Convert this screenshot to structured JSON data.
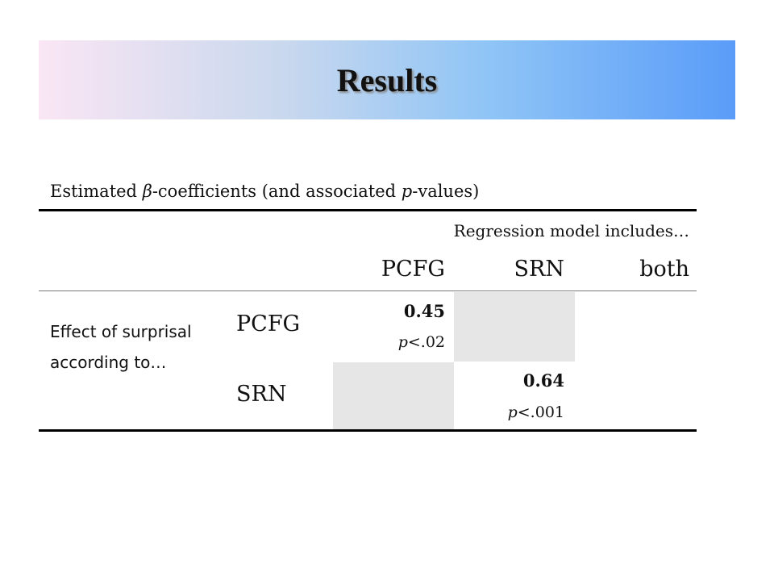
{
  "header": {
    "title": "Results"
  },
  "table": {
    "caption": [
      "Estimated ",
      "β",
      "-coefficients (and associated ",
      "p",
      "-values)"
    ],
    "column_group": "Regression model includes…",
    "columns": [
      "PCFG",
      "SRN",
      "both"
    ],
    "row_group": "Effect of surprisal according to…",
    "rows": [
      {
        "label": "PCFG",
        "cells": [
          {
            "value": "0.45",
            "p_symbol": "p",
            "p_text": "<.02"
          }
        ]
      },
      {
        "label": "SRN",
        "cells": [
          null,
          {
            "value": "0.64",
            "p_symbol": "p",
            "p_text": "<.001"
          }
        ]
      }
    ]
  }
}
